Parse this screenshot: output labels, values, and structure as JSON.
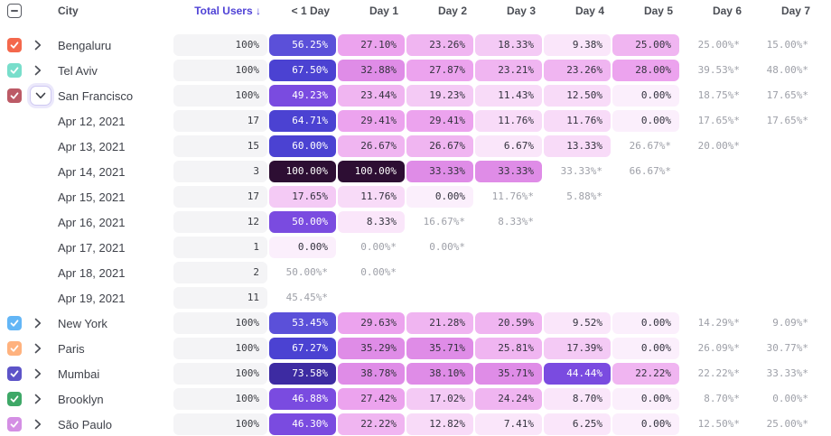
{
  "header": {
    "columns": [
      "City",
      "Total Users ↓",
      "< 1 Day",
      "Day 1",
      "Day 2",
      "Day 3",
      "Day 4",
      "Day 5",
      "Day 6",
      "Day 7"
    ],
    "select_all_state": "indeterminate"
  },
  "colors": {
    "accent_sorted_header": "#4F42D6",
    "starred_text": "#9EA0A8",
    "total_cell_bg": "#F4F4F6"
  },
  "color_scale": [
    {
      "max": 5,
      "bg": "#FBEFFC",
      "fg": "#33323E"
    },
    {
      "max": 10,
      "bg": "#FAE6FA",
      "fg": "#33323E"
    },
    {
      "max": 15,
      "bg": "#F8DBF8",
      "fg": "#33323E"
    },
    {
      "max": 20,
      "bg": "#F4CAF5",
      "fg": "#33323E"
    },
    {
      "max": 27,
      "bg": "#F0B5F1",
      "fg": "#33323E"
    },
    {
      "max": 31,
      "bg": "#ECA3EE",
      "fg": "#33323E"
    },
    {
      "max": 40,
      "bg": "#DF8CE7",
      "fg": "#33323E"
    },
    {
      "max": 52,
      "bg": "#7A4BE0",
      "fg": "#FFFFFF"
    },
    {
      "max": 58,
      "bg": "#5B50D9",
      "fg": "#FFFFFF"
    },
    {
      "max": 70,
      "bg": "#4B42D2",
      "fg": "#FFFFFF"
    },
    {
      "max": 90,
      "bg": "#3D2BA2",
      "fg": "#FFFFFF"
    },
    {
      "max": 100,
      "bg": "#2D0E33",
      "fg": "#FFFFFF"
    }
  ],
  "rows": [
    {
      "type": "city",
      "label": "Bengaluru",
      "checkbox_color": "#F4684C",
      "expanded": false,
      "total": "100%",
      "cells": [
        "56.25%",
        "27.10%",
        "23.26%",
        "18.33%",
        "9.38%",
        "25.00%",
        "25.00%*",
        "15.00%*"
      ]
    },
    {
      "type": "city",
      "label": "Tel Aviv",
      "checkbox_color": "#78DECB",
      "expanded": false,
      "total": "100%",
      "cells": [
        "67.50%",
        "32.88%",
        "27.87%",
        "23.21%",
        "23.26%",
        "28.00%",
        "39.53%*",
        "48.00%*"
      ]
    },
    {
      "type": "city",
      "label": "San Francisco",
      "checkbox_color": "#BC5A66",
      "expanded": true,
      "total": "100%",
      "cells": [
        "49.23%",
        "23.44%",
        "19.23%",
        "11.43%",
        "12.50%",
        "0.00%",
        "18.75%*",
        "17.65%*"
      ]
    },
    {
      "type": "date",
      "label": "Apr 12, 2021",
      "total": "17",
      "cells": [
        "64.71%",
        "29.41%",
        "29.41%",
        "11.76%",
        "11.76%",
        "0.00%",
        "17.65%*",
        "17.65%*"
      ]
    },
    {
      "type": "date",
      "label": "Apr 13, 2021",
      "total": "15",
      "cells": [
        "60.00%",
        "26.67%",
        "26.67%",
        "6.67%",
        "13.33%",
        "26.67%*",
        "20.00%*",
        ""
      ]
    },
    {
      "type": "date",
      "label": "Apr 14, 2021",
      "total": "3",
      "cells": [
        "100.00%",
        "100.00%",
        "33.33%",
        "33.33%",
        "33.33%*",
        "66.67%*",
        "",
        ""
      ]
    },
    {
      "type": "date",
      "label": "Apr 15, 2021",
      "total": "17",
      "cells": [
        "17.65%",
        "11.76%",
        "0.00%",
        "11.76%*",
        "5.88%*",
        "",
        "",
        ""
      ]
    },
    {
      "type": "date",
      "label": "Apr 16, 2021",
      "total": "12",
      "cells": [
        "50.00%",
        "8.33%",
        "16.67%*",
        "8.33%*",
        "",
        "",
        "",
        ""
      ]
    },
    {
      "type": "date",
      "label": "Apr 17, 2021",
      "total": "1",
      "cells": [
        "0.00%",
        "0.00%*",
        "0.00%*",
        "",
        "",
        "",
        "",
        ""
      ]
    },
    {
      "type": "date",
      "label": "Apr 18, 2021",
      "total": "2",
      "cells": [
        "50.00%*",
        "0.00%*",
        "",
        "",
        "",
        "",
        "",
        ""
      ]
    },
    {
      "type": "date",
      "label": "Apr 19, 2021",
      "total": "11",
      "cells": [
        "45.45%*",
        "",
        "",
        "",
        "",
        "",
        "",
        ""
      ]
    },
    {
      "type": "city",
      "label": "New York",
      "checkbox_color": "#63B6F6",
      "expanded": false,
      "total": "100%",
      "cells": [
        "53.45%",
        "29.63%",
        "21.28%",
        "20.59%",
        "9.52%",
        "0.00%",
        "14.29%*",
        "9.09%*"
      ]
    },
    {
      "type": "city",
      "label": "Paris",
      "checkbox_color": "#FFB27E",
      "expanded": false,
      "total": "100%",
      "cells": [
        "67.27%",
        "35.29%",
        "35.71%",
        "25.81%",
        "17.39%",
        "0.00%",
        "26.09%*",
        "30.77%*"
      ]
    },
    {
      "type": "city",
      "label": "Mumbai",
      "checkbox_color": "#5D54C8",
      "expanded": false,
      "total": "100%",
      "cells": [
        "73.58%",
        "38.78%",
        "38.10%",
        "35.71%",
        "44.44%",
        "22.22%",
        "22.22%*",
        "33.33%*"
      ]
    },
    {
      "type": "city",
      "label": "Brooklyn",
      "checkbox_color": "#3EA867",
      "expanded": false,
      "total": "100%",
      "cells": [
        "46.88%",
        "27.42%",
        "17.02%",
        "24.24%",
        "8.70%",
        "0.00%",
        "8.70%*",
        "0.00%*"
      ]
    },
    {
      "type": "city",
      "label": "São Paulo",
      "checkbox_color": "#D48FE4",
      "expanded": false,
      "total": "100%",
      "cells": [
        "46.30%",
        "22.22%",
        "12.82%",
        "7.41%",
        "6.25%",
        "0.00%",
        "12.50%*",
        "25.00%*"
      ]
    }
  ]
}
